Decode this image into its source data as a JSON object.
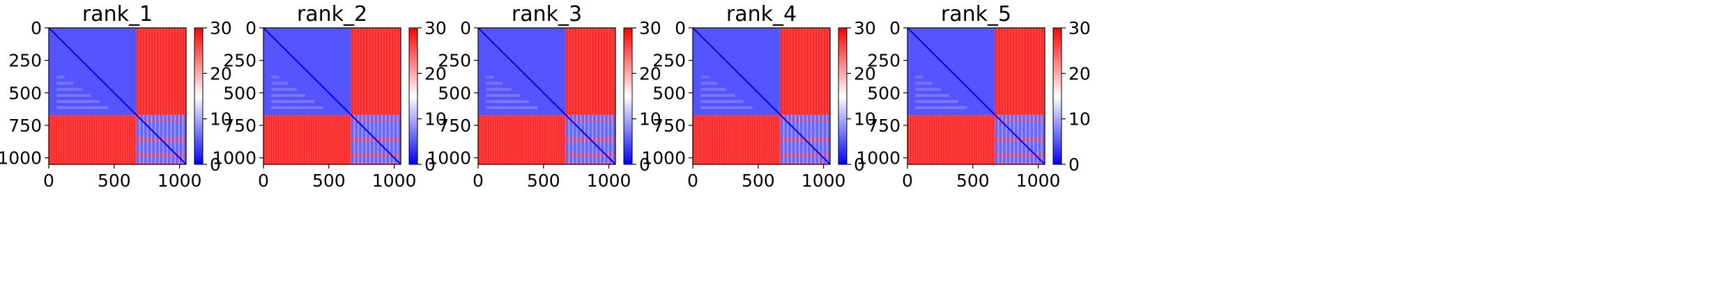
{
  "figure": {
    "layout": "1x5 subplots, each heatmap with its own colorbar"
  },
  "chart_data": [
    {
      "type": "heatmap",
      "title": "rank_1",
      "xlim": [
        0,
        1050
      ],
      "ylim": [
        1050,
        0
      ],
      "xticks": [
        0,
        500,
        1000
      ],
      "yticks": [
        0,
        250,
        500,
        750,
        1000
      ],
      "colorbar": {
        "cmap": "bwr",
        "vmin": 0,
        "vmax": 30,
        "ticks": [
          0,
          10,
          20,
          30
        ]
      },
      "blocks": [
        {
          "rows": [
            0,
            670
          ],
          "cols": [
            0,
            670
          ],
          "level": "low (blue)",
          "approx_value": 5
        },
        {
          "rows": [
            0,
            670
          ],
          "cols": [
            670,
            1050
          ],
          "level": "high (red)",
          "approx_value": 28
        },
        {
          "rows": [
            670,
            1050
          ],
          "cols": [
            0,
            670
          ],
          "level": "high (red)",
          "approx_value": 28
        },
        {
          "rows": [
            670,
            1050
          ],
          "cols": [
            670,
            1050
          ],
          "level": "low (blue), banded",
          "approx_value": 6
        }
      ],
      "diagonal_value": 0
    },
    {
      "type": "heatmap",
      "title": "rank_2",
      "xlim": [
        0,
        1050
      ],
      "ylim": [
        1050,
        0
      ],
      "xticks": [
        0,
        500,
        1000
      ],
      "yticks": [
        0,
        250,
        500,
        750,
        1000
      ],
      "colorbar": {
        "cmap": "bwr",
        "vmin": 0,
        "vmax": 30,
        "ticks": [
          0,
          10,
          20,
          30
        ]
      },
      "blocks": [
        {
          "rows": [
            0,
            670
          ],
          "cols": [
            0,
            670
          ],
          "level": "low (blue)",
          "approx_value": 5
        },
        {
          "rows": [
            0,
            670
          ],
          "cols": [
            670,
            1050
          ],
          "level": "high (red)",
          "approx_value": 28
        },
        {
          "rows": [
            670,
            1050
          ],
          "cols": [
            0,
            670
          ],
          "level": "high (red)",
          "approx_value": 28
        },
        {
          "rows": [
            670,
            1050
          ],
          "cols": [
            670,
            1050
          ],
          "level": "low (blue), banded",
          "approx_value": 6
        }
      ],
      "diagonal_value": 0
    },
    {
      "type": "heatmap",
      "title": "rank_3",
      "xlim": [
        0,
        1050
      ],
      "ylim": [
        1050,
        0
      ],
      "xticks": [
        0,
        500,
        1000
      ],
      "yticks": [
        0,
        250,
        500,
        750,
        1000
      ],
      "colorbar": {
        "cmap": "bwr",
        "vmin": 0,
        "vmax": 30,
        "ticks": [
          0,
          10,
          20,
          30
        ]
      },
      "blocks": [
        {
          "rows": [
            0,
            670
          ],
          "cols": [
            0,
            670
          ],
          "level": "low (blue)",
          "approx_value": 5
        },
        {
          "rows": [
            0,
            670
          ],
          "cols": [
            670,
            1050
          ],
          "level": "high (red)",
          "approx_value": 28
        },
        {
          "rows": [
            670,
            1050
          ],
          "cols": [
            0,
            670
          ],
          "level": "high (red)",
          "approx_value": 28
        },
        {
          "rows": [
            670,
            1050
          ],
          "cols": [
            670,
            1050
          ],
          "level": "low (blue), banded",
          "approx_value": 6
        }
      ],
      "diagonal_value": 0
    },
    {
      "type": "heatmap",
      "title": "rank_4",
      "xlim": [
        0,
        1050
      ],
      "ylim": [
        1050,
        0
      ],
      "xticks": [
        0,
        500,
        1000
      ],
      "yticks": [
        0,
        250,
        500,
        750,
        1000
      ],
      "colorbar": {
        "cmap": "bwr",
        "vmin": 0,
        "vmax": 30,
        "ticks": [
          0,
          10,
          20,
          30
        ]
      },
      "blocks": [
        {
          "rows": [
            0,
            670
          ],
          "cols": [
            0,
            670
          ],
          "level": "low (blue)",
          "approx_value": 5
        },
        {
          "rows": [
            0,
            670
          ],
          "cols": [
            670,
            1050
          ],
          "level": "high (red)",
          "approx_value": 28
        },
        {
          "rows": [
            670,
            1050
          ],
          "cols": [
            0,
            670
          ],
          "level": "high (red)",
          "approx_value": 28
        },
        {
          "rows": [
            670,
            1050
          ],
          "cols": [
            670,
            1050
          ],
          "level": "low (blue), banded",
          "approx_value": 6
        }
      ],
      "diagonal_value": 0
    },
    {
      "type": "heatmap",
      "title": "rank_5",
      "xlim": [
        0,
        1050
      ],
      "ylim": [
        1050,
        0
      ],
      "xticks": [
        0,
        500,
        1000
      ],
      "yticks": [
        0,
        250,
        500,
        750,
        1000
      ],
      "colorbar": {
        "cmap": "bwr",
        "vmin": 0,
        "vmax": 30,
        "ticks": [
          0,
          10,
          20,
          30
        ]
      },
      "blocks": [
        {
          "rows": [
            0,
            670
          ],
          "cols": [
            0,
            670
          ],
          "level": "low (blue)",
          "approx_value": 5
        },
        {
          "rows": [
            0,
            670
          ],
          "cols": [
            670,
            1050
          ],
          "level": "high (red)",
          "approx_value": 28
        },
        {
          "rows": [
            670,
            1050
          ],
          "cols": [
            0,
            670
          ],
          "level": "high (red)",
          "approx_value": 28
        },
        {
          "rows": [
            670,
            1050
          ],
          "cols": [
            670,
            1050
          ],
          "level": "low (blue), banded",
          "approx_value": 6
        }
      ],
      "diagonal_value": 0
    }
  ]
}
